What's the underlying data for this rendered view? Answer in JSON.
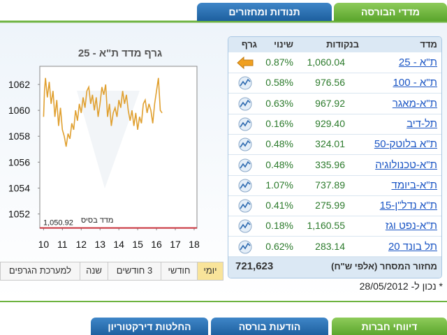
{
  "tabs": [
    "מדדי הבורסה",
    "תנודות ומחזורים"
  ],
  "table": {
    "headers": [
      "מדד",
      "בנקודות",
      "שינוי",
      "גרף"
    ],
    "rows": [
      [
        "ת\"א - 25",
        "1,060.04",
        "0.87%"
      ],
      [
        "ת\"א - 100",
        "976.56",
        "0.58%"
      ],
      [
        "ת\"א-מאגר",
        "967.92",
        "0.63%"
      ],
      [
        "תל-דיב",
        "929.40",
        "0.16%"
      ],
      [
        "ת\"א בלוטק-50",
        "324.01",
        "0.48%"
      ],
      [
        "ת\"א-טכנולוגיה",
        "335.96",
        "0.48%"
      ],
      [
        "ת\"א-ביומד",
        "737.89",
        "1.07%"
      ],
      [
        "ת\"א נדל\"ן-15",
        "275.99",
        "0.41%"
      ],
      [
        "ת\"א-נפט וגז",
        "1,160.55",
        "0.18%"
      ],
      [
        "תל בונד 20",
        "283.14",
        "0.62%"
      ]
    ],
    "volume_label": "מחזור המסחר (אלפי ש\"ח)",
    "volume": "721,623"
  },
  "updated": "* נכון ל- 28/05/2012",
  "period_buttons": [
    "יומי",
    "חודשי",
    "3 חודשים",
    "שנה",
    "למערכת הגרפים"
  ],
  "bottom_tabs": [
    "דיווחי חברות",
    "הודעות בורסה",
    "החלטות דירקטוריון"
  ],
  "chart_data": {
    "type": "line",
    "title": "גרף מדד ת\"א - 25",
    "color": "#e0a030",
    "x": [
      10.0,
      10.05,
      10.1,
      10.2,
      10.3,
      10.4,
      10.5,
      10.6,
      10.7,
      10.8,
      10.9,
      11.0,
      11.1,
      11.2,
      11.3,
      11.4,
      11.5,
      11.6,
      11.7,
      11.8,
      11.9,
      12.0,
      12.1,
      12.2,
      12.3,
      12.4,
      12.5,
      12.6,
      12.7,
      12.8,
      12.9,
      13.0,
      13.1,
      13.2,
      13.3,
      13.4,
      13.5,
      13.6,
      13.7,
      13.8,
      13.9,
      14.0,
      14.1,
      14.2,
      14.3,
      14.4,
      14.5,
      14.6,
      14.7,
      14.8,
      14.9,
      15.0,
      15.1,
      15.2,
      15.3,
      15.4,
      15.5,
      15.6,
      15.7,
      15.8,
      15.9,
      16.0,
      16.1,
      16.2,
      16.3
    ],
    "values": [
      1059.5,
      1061.5,
      1062.5,
      1061.0,
      1062.2,
      1060.5,
      1061.5,
      1059.5,
      1060.8,
      1058.8,
      1060.2,
      1058.5,
      1058.0,
      1057.2,
      1058.2,
      1057.8,
      1059.0,
      1058.5,
      1060.0,
      1059.2,
      1060.5,
      1059.8,
      1061.0,
      1060.2,
      1061.5,
      1061.8,
      1060.5,
      1061.2,
      1060.0,
      1061.0,
      1059.5,
      1060.5,
      1061.8,
      1061.2,
      1062.0,
      1059.5,
      1060.5,
      1058.8,
      1059.8,
      1060.2,
      1059.5,
      1060.8,
      1060.2,
      1061.5,
      1060.5,
      1061.2,
      1060.0,
      1059.2,
      1060.0,
      1058.8,
      1059.8,
      1058.5,
      1059.5,
      1059.0,
      1060.5,
      1060.8,
      1059.8,
      1060.5,
      1060.0,
      1059.0,
      1060.5,
      1061.5,
      1062.5,
      1060.0,
      1059.8
    ],
    "xlim": [
      9.8,
      18.15
    ],
    "ylim": [
      1050.9,
      1063.4
    ],
    "xticks": [
      10,
      11,
      12,
      13,
      14,
      15,
      16,
      17,
      18
    ],
    "yticks": [
      1052,
      1054,
      1056,
      1058,
      1060,
      1062
    ],
    "base_text": "מדד בסיס",
    "base": {
      "value": 1050.92,
      "label": "1,050.92"
    }
  }
}
